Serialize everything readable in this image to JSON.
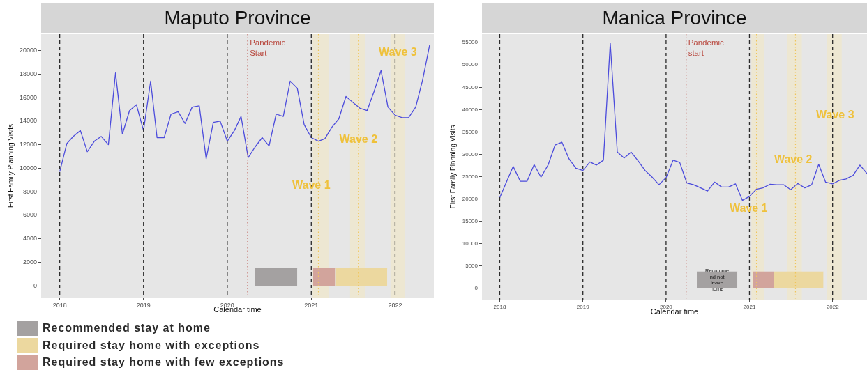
{
  "chart_data": [
    {
      "type": "line",
      "title": "Maputo Province",
      "xlabel": "Calendar time",
      "ylabel": "First Family Planning Visits",
      "x": [
        "2018-01",
        "2018-02",
        "2018-03",
        "2018-04",
        "2018-05",
        "2018-06",
        "2018-07",
        "2018-08",
        "2018-09",
        "2018-10",
        "2018-11",
        "2018-12",
        "2019-01",
        "2019-02",
        "2019-03",
        "2019-04",
        "2019-05",
        "2019-06",
        "2019-07",
        "2019-08",
        "2019-09",
        "2019-10",
        "2019-11",
        "2019-12",
        "2020-01",
        "2020-02",
        "2020-03",
        "2020-04",
        "2020-05",
        "2020-06",
        "2020-07",
        "2020-08",
        "2020-09",
        "2020-10",
        "2020-11",
        "2020-12",
        "2021-01",
        "2021-02",
        "2021-03",
        "2021-04",
        "2021-05",
        "2021-06",
        "2021-07",
        "2021-08",
        "2021-09",
        "2021-10",
        "2021-11",
        "2021-12",
        "2022-01",
        "2022-02",
        "2022-03",
        "2022-04",
        "2022-05",
        "2022-06"
      ],
      "series": [
        {
          "color": "#4b4bdc",
          "values": [
            9700,
            12100,
            12700,
            13200,
            11400,
            12300,
            12700,
            12000,
            18100,
            12900,
            14900,
            15400,
            13200,
            17400,
            12600,
            12600,
            14600,
            14800,
            13800,
            15200,
            15300,
            10800,
            13900,
            14000,
            12300,
            13200,
            14400,
            10900,
            11800,
            12600,
            11900,
            14600,
            14400,
            17400,
            16800,
            13700,
            12600,
            12300,
            12500,
            13500,
            14200,
            16100,
            15600,
            15100,
            14900,
            16500,
            18300,
            15200,
            14500,
            14300,
            14300,
            15200,
            17500,
            20500
          ]
        },
        {
          "type": "area",
          "name": "Recommended stay at home",
          "color": "#a4a1a1",
          "x": [
            "2020-05-01",
            "2020-11-01"
          ],
          "values": [
            1500,
            1500
          ]
        },
        {
          "type": "area",
          "name": "Required stay home with exceptions",
          "color": "#ecd89f",
          "x": [
            "2021-04-15",
            "2021-11-28"
          ],
          "values": [
            1500,
            1500
          ]
        },
        {
          "type": "area",
          "name": "Required stay home with few exceptions",
          "color": "#d2a49c",
          "x": [
            "2021-01-09",
            "2021-04-15"
          ],
          "values": [
            1500,
            1500
          ]
        }
      ],
      "xlim": [
        "2017-10-12",
        "2022-06-19"
      ],
      "xticks": [
        "2018",
        "2019",
        "2020",
        "2021",
        "2022"
      ],
      "ylim": [
        -1000,
        21400
      ],
      "yticks": [
        0,
        2000,
        4000,
        6000,
        8000,
        10000,
        12000,
        14000,
        16000,
        18000,
        20000
      ],
      "bands": [
        {
          "axis": "x",
          "from": "2021-01-07",
          "to": "2021-03-19",
          "color": "#ede7d2"
        },
        {
          "axis": "x",
          "from": "2021-06-19",
          "to": "2021-08-25",
          "color": "#ede7d2"
        },
        {
          "axis": "x",
          "from": "2021-12-12",
          "to": "2022-02-14",
          "color": "#ede7d2"
        }
      ],
      "ref_lines": [
        {
          "axis": "x",
          "value": "2018",
          "color": "#2b2b2b",
          "line_style": "dashed"
        },
        {
          "axis": "x",
          "value": "2019",
          "color": "#2b2b2b",
          "line_style": "dashed"
        },
        {
          "axis": "x",
          "value": "2020",
          "color": "#2b2b2b",
          "line_style": "dashed"
        },
        {
          "axis": "x",
          "value": "2021",
          "color": "#2b2b2b",
          "line_style": "dashed"
        },
        {
          "axis": "x",
          "value": "2022",
          "color": "#2b2b2b",
          "line_style": "dashed"
        },
        {
          "axis": "x",
          "value": "2020-03-30",
          "label": "Pandemic\nStart",
          "color": "#b8473d",
          "line_style": "dotted"
        },
        {
          "axis": "x",
          "value": "2021-02-01",
          "color": "#f0c55a",
          "line_style": "dotted"
        },
        {
          "axis": "x",
          "value": "2021-07-25",
          "color": "#f0c55a",
          "line_style": "dotted"
        }
      ],
      "annotations": [
        {
          "text": "Wave 1",
          "x": "2021-01-01",
          "y": 8500
        },
        {
          "text": "Wave 2",
          "x": "2021-07-25",
          "y": 12400
        },
        {
          "text": "Wave 3",
          "x": "2022-01-13",
          "y": 19800
        }
      ],
      "legend": "bottom left"
    },
    {
      "type": "line",
      "title": "Manica Province",
      "xlabel": "Calendar time",
      "ylabel": "First Family Planning Visits",
      "x": [
        "2018-01",
        "2018-02",
        "2018-03",
        "2018-04",
        "2018-05",
        "2018-06",
        "2018-07",
        "2018-08",
        "2018-09",
        "2018-10",
        "2018-11",
        "2018-12",
        "2019-01",
        "2019-02",
        "2019-03",
        "2019-04",
        "2019-05",
        "2019-06",
        "2019-07",
        "2019-08",
        "2019-09",
        "2019-10",
        "2019-11",
        "2019-12",
        "2020-01",
        "2020-02",
        "2020-03",
        "2020-04",
        "2020-05",
        "2020-06",
        "2020-07",
        "2020-08",
        "2020-09",
        "2020-10",
        "2020-11",
        "2020-12",
        "2021-01",
        "2021-02",
        "2021-03",
        "2021-04",
        "2021-05",
        "2021-06",
        "2021-07",
        "2021-08",
        "2021-09",
        "2021-10",
        "2021-11",
        "2021-12",
        "2022-01",
        "2022-02",
        "2022-03",
        "2022-04",
        "2022-05",
        "2022-06"
      ],
      "series": [
        {
          "color": "#4b4bdc",
          "values": [
            20300,
            24000,
            27300,
            24000,
            24000,
            27700,
            24900,
            27600,
            32100,
            32700,
            29000,
            26900,
            26400,
            28300,
            27600,
            28700,
            54900,
            30500,
            29200,
            30500,
            28500,
            26400,
            24900,
            23200,
            24800,
            28700,
            28200,
            23600,
            23200,
            22500,
            21800,
            23800,
            22700,
            22700,
            23400,
            19700,
            20600,
            22200,
            22500,
            23300,
            23200,
            23200,
            22100,
            23500,
            22500,
            23200,
            27800,
            23800,
            23400,
            24200,
            24500,
            25300,
            27600,
            25700
          ]
        },
        {
          "type": "area",
          "name": "Recomme\nnd not\nleave\nhome",
          "color": "#a4a1a1",
          "x": [
            "2020-05-15",
            "2020-11-09"
          ],
          "values": [
            3700,
            3700
          ]
        },
        {
          "type": "area",
          "color": "#ecd89f",
          "x": [
            "2021-04-19",
            "2021-11-22"
          ],
          "values": [
            3700,
            3700
          ]
        },
        {
          "type": "area",
          "color": "#d2a49c",
          "x": [
            "2021-01-16",
            "2021-04-19"
          ],
          "values": [
            3700,
            3700
          ]
        }
      ],
      "xlim": [
        "2017-10-15",
        "2022-06-01"
      ],
      "xticks": [
        "2018",
        "2019",
        "2020",
        "2021",
        "2022"
      ],
      "ylim": [
        -2500,
        56900
      ],
      "yticks": [
        0,
        5000,
        10000,
        15000,
        20000,
        25000,
        30000,
        35000,
        40000,
        45000,
        50000,
        55000
      ],
      "bands": [
        {
          "axis": "x",
          "from": "2021-01-10",
          "to": "2021-03-08",
          "color": "#ede7d2"
        },
        {
          "axis": "x",
          "from": "2021-06-16",
          "to": "2021-08-19",
          "color": "#ede7d2"
        },
        {
          "axis": "x",
          "from": "2021-12-07",
          "to": "2022-02-10",
          "color": "#ede7d2"
        }
      ],
      "ref_lines": [
        {
          "axis": "x",
          "value": "2018",
          "color": "#2b2b2b",
          "line_style": "dashed"
        },
        {
          "axis": "x",
          "value": "2019",
          "color": "#2b2b2b",
          "line_style": "dashed"
        },
        {
          "axis": "x",
          "value": "2020",
          "color": "#2b2b2b",
          "line_style": "dashed"
        },
        {
          "axis": "x",
          "value": "2021",
          "color": "#2b2b2b",
          "line_style": "dashed"
        },
        {
          "axis": "x",
          "value": "2022",
          "color": "#2b2b2b",
          "line_style": "dashed"
        },
        {
          "axis": "x",
          "value": "2020-03-29",
          "label": "Pandemic\nstart",
          "color": "#b8473d",
          "line_style": "dotted"
        },
        {
          "axis": "x",
          "value": "2021-02-01",
          "color": "#f0c55a",
          "line_style": "dotted"
        },
        {
          "axis": "x",
          "value": "2021-07-22",
          "color": "#f0c55a",
          "line_style": "dotted"
        }
      ],
      "annotations": [
        {
          "text": "Wave 1",
          "x": "2020-12-28",
          "y": 17800
        },
        {
          "text": "Wave 2",
          "x": "2021-07-12",
          "y": 28700
        },
        {
          "text": "Wave 3",
          "x": "2022-01-12",
          "y": 38700
        }
      ]
    }
  ]
}
